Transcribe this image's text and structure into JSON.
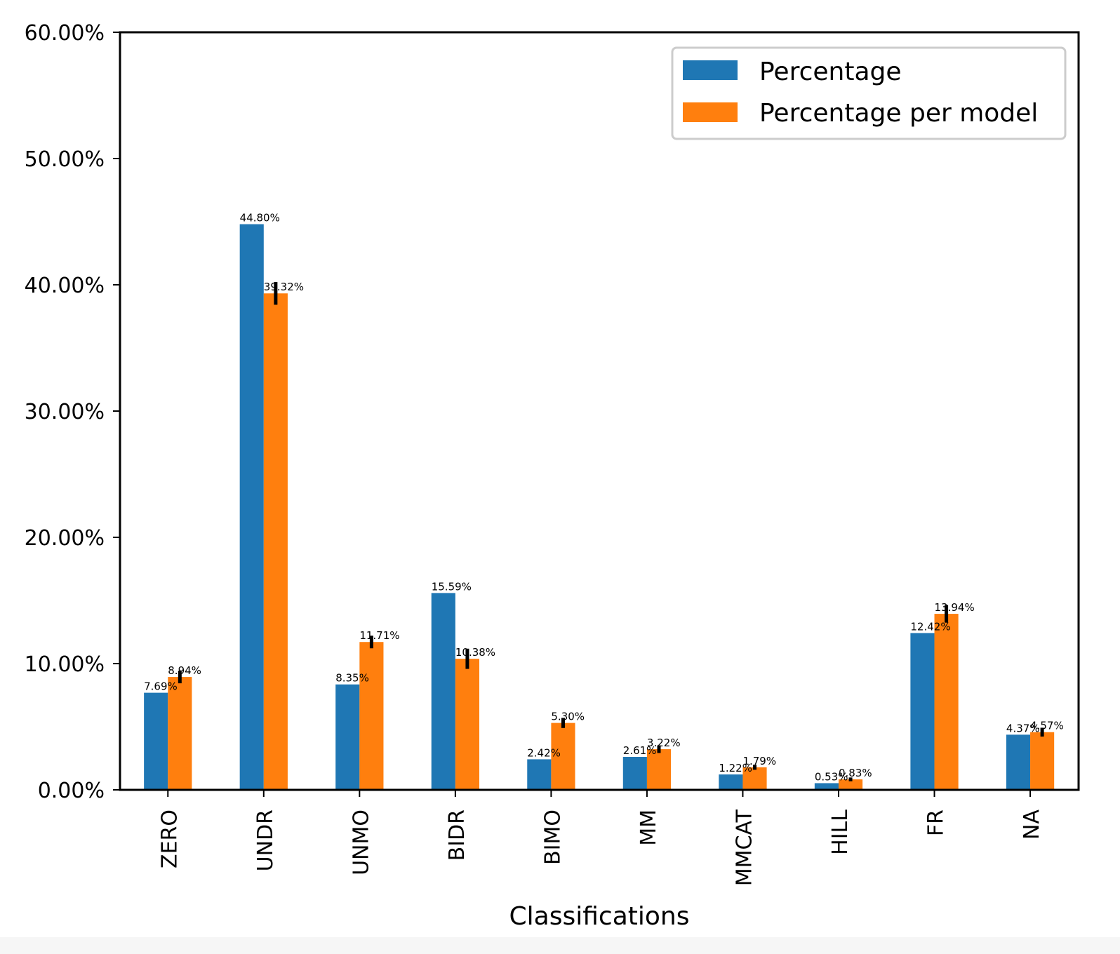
{
  "chart_data": {
    "type": "bar",
    "xlabel": "Classifications",
    "ylabel": "",
    "ylim": [
      0,
      60
    ],
    "y_tick_values": [
      0,
      10,
      20,
      30,
      40,
      50,
      60
    ],
    "y_tick_labels": [
      "0.00%",
      "10.00%",
      "20.00%",
      "30.00%",
      "40.00%",
      "50.00%",
      "60.00%"
    ],
    "categories": [
      "ZERO",
      "UNDR",
      "UNMO",
      "BIDR",
      "BIMO",
      "MM",
      "MMCAT",
      "HILL",
      "FR",
      "NA"
    ],
    "series": [
      {
        "name": "Percentage",
        "color": "#1f77b4",
        "values": [
          7.69,
          44.8,
          8.35,
          15.59,
          2.42,
          2.61,
          1.22,
          0.53,
          12.42,
          4.37
        ],
        "labels": [
          "7.69%",
          "44.80%",
          "8.35%",
          "15.59%",
          "2.42%",
          "2.61%",
          "1.22%",
          "0.53%",
          "12.42%",
          "4.37%"
        ]
      },
      {
        "name": "Percentage per model",
        "color": "#ff7f0e",
        "values": [
          8.94,
          39.32,
          11.71,
          10.38,
          5.3,
          3.22,
          1.79,
          0.83,
          13.94,
          4.57
        ],
        "labels": [
          "8.94%",
          "39.32%",
          "11.71%",
          "10.38%",
          "5.30%",
          "3.22%",
          "1.79%",
          "0.83%",
          "13.94%",
          "4.57%"
        ],
        "error": [
          0.5,
          0.9,
          0.5,
          0.8,
          0.4,
          0.3,
          0.2,
          0.15,
          0.7,
          0.35
        ]
      }
    ],
    "legend_position": "top-right",
    "grid": false
  }
}
